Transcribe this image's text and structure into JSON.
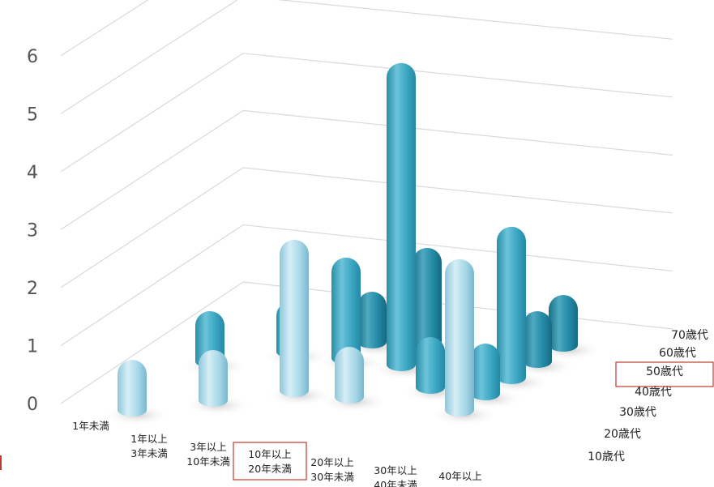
{
  "chart_data": {
    "type": "bar",
    "subtype": "3d-cylinder",
    "title": "",
    "ylim": [
      0,
      6
    ],
    "yticks": [
      "0",
      "1",
      "2",
      "3",
      "4",
      "5",
      "6"
    ],
    "grid": true,
    "x_categories": [
      [
        "1年未満"
      ],
      [
        "1年以上",
        "3年未満"
      ],
      [
        "3年以上",
        "10年未満"
      ],
      [
        "10年以上",
        "20年未満"
      ],
      [
        "20年以上",
        "30年未満"
      ],
      [
        "30年以上",
        "40年未満"
      ],
      [
        "40年以上"
      ]
    ],
    "highlighted_x": "10年以上 20年未満",
    "depth_categories": [
      "10歳代",
      "20歳代",
      "30歳代",
      "40歳代",
      "50歳代",
      "60歳代",
      "70歳代"
    ],
    "highlighted_depth": "50歳代",
    "values": [
      {
        "x": "1年以上 3年未満",
        "series": "10歳代",
        "value": 1
      },
      {
        "x": "1年以上 3年未満",
        "series": "40歳代",
        "value": 1
      },
      {
        "x": "3年以上 10年未満",
        "series": "20歳代",
        "value": 1
      },
      {
        "x": "3年以上 10年未満",
        "series": "50歳代",
        "value": 1
      },
      {
        "x": "10年以上 20年未満",
        "series": "30歳代",
        "value": 3
      },
      {
        "x": "10年以上 20年未満",
        "series": "50歳代",
        "value": 2
      },
      {
        "x": "10年以上 20年未満",
        "series": "60歳代",
        "value": 1
      },
      {
        "x": "20年以上 30年未満",
        "series": "50歳代",
        "value": 6
      },
      {
        "x": "20年以上 30年未満",
        "series": "60歳代",
        "value": 2
      },
      {
        "x": "20年以上 30年未満",
        "series": "30歳代",
        "value": 1
      },
      {
        "x": "30年以上 40年未満",
        "series": "40歳代",
        "value": 1
      },
      {
        "x": "40年以上",
        "series": "30歳代",
        "value": 3
      },
      {
        "x": "40年以上",
        "series": "50歳代",
        "value": 3
      },
      {
        "x": "40年以上",
        "series": "60歳代",
        "value": 1
      },
      {
        "x": "40年以上",
        "series": "40歳代",
        "value": 1
      },
      {
        "x": "40年以上",
        "series": "70歳代",
        "value": 1
      }
    ],
    "colors": {
      "light": "#a8d8e8",
      "mid": "#3aa6c2",
      "dark": "#1f7d98",
      "highlight_box": "#c0392b",
      "grid": "#d9d9d9"
    }
  }
}
